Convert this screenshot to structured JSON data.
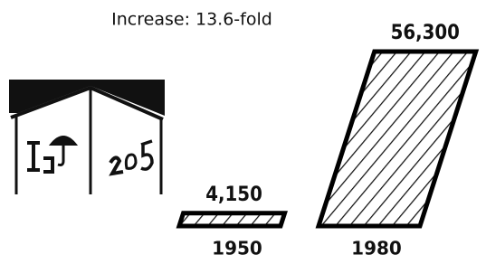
{
  "chart_data": {
    "type": "bar",
    "title": "Increase: 13.6-fold",
    "categories": [
      "1950",
      "1980"
    ],
    "values": [
      4150,
      56300
    ],
    "value_labels": [
      "4,150",
      "56,300"
    ],
    "color": "#000000"
  }
}
